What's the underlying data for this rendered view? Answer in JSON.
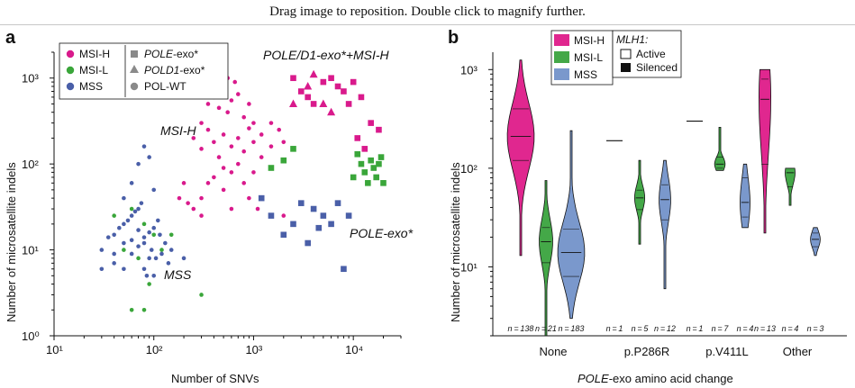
{
  "banner": "Drag image to reposition. Double click to magnify further.",
  "colors": {
    "msih": "#d91a8c",
    "msil": "#3aa63a",
    "mss": "#4a5fa8",
    "msih_fill": "#e0278f",
    "msil_fill": "#44a848",
    "mss_fill": "#7a98cc"
  },
  "panel_a": {
    "label": "a",
    "legend": {
      "groups": [
        "MSI-H",
        "MSI-L",
        "MSS"
      ],
      "shapes": [
        {
          "label_italic": "POLE",
          "label_rest": "-exo*",
          "icon": "square-icon"
        },
        {
          "label_italic": "POLD1",
          "label_rest": "-exo*",
          "icon": "triangle-icon"
        },
        {
          "label_italic": "",
          "label_rest": "POL-WT",
          "icon": "circle-icon"
        }
      ]
    },
    "annotations": {
      "poled1": "POLE/D1-exo*+MSI-H",
      "msih": "MSI-H",
      "mss": "MSS",
      "poleexo": "POLE-exo*"
    }
  },
  "panel_b": {
    "label": "b",
    "legend_groups": [
      "MSI-H",
      "MSI-L",
      "MSS"
    ],
    "legend_title": "MLH1:",
    "legend_status": [
      "Active",
      "Silenced"
    ]
  },
  "chart_data": [
    {
      "type": "scatter",
      "xlabel": "Number of SNVs",
      "ylabel": "Number of microsatellite indels",
      "xscale": "log",
      "yscale": "log",
      "xlim": [
        10,
        30000
      ],
      "ylim": [
        1,
        2000
      ],
      "xticks": [
        "10¹",
        "10²",
        "10³",
        "10⁴"
      ],
      "yticks": [
        "10⁰",
        "10¹",
        "10²",
        "10³"
      ],
      "series": [
        {
          "name": "MSI-H",
          "marker": "circle",
          "points": [
            [
              300,
              300
            ],
            [
              350,
              500
            ],
            [
              400,
              600
            ],
            [
              450,
              450
            ],
            [
              500,
              700
            ],
            [
              550,
              400
            ],
            [
              600,
              550
            ],
            [
              700,
              650
            ],
            [
              800,
              350
            ],
            [
              900,
              500
            ],
            [
              1000,
              300
            ],
            [
              250,
              200
            ],
            [
              300,
              150
            ],
            [
              350,
              250
            ],
            [
              400,
              180
            ],
            [
              450,
              120
            ],
            [
              500,
              220
            ],
            [
              600,
              160
            ],
            [
              700,
              200
            ],
            [
              800,
              140
            ],
            [
              900,
              260
            ],
            [
              1000,
              180
            ],
            [
              1200,
              220
            ],
            [
              1500,
              300
            ],
            [
              1800,
              250
            ],
            [
              2000,
              180
            ],
            [
              700,
              100
            ],
            [
              600,
              80
            ],
            [
              500,
              90
            ],
            [
              400,
              70
            ],
            [
              350,
              60
            ],
            [
              300,
              40
            ],
            [
              250,
              30
            ],
            [
              220,
              35
            ],
            [
              500,
              50
            ],
            [
              800,
              60
            ],
            [
              1000,
              80
            ],
            [
              1200,
              120
            ],
            [
              1500,
              160
            ],
            [
              200,
              60
            ],
            [
              180,
              40
            ],
            [
              600,
              30
            ],
            [
              900,
              40
            ],
            [
              1100,
              30
            ],
            [
              2000,
              25
            ],
            [
              300,
              25
            ],
            [
              450,
              800
            ],
            [
              650,
              900
            ],
            [
              550,
              1000
            ]
          ]
        },
        {
          "name": "MSI-H",
          "marker": "square",
          "points": [
            [
              2500,
              1000
            ],
            [
              3000,
              700
            ],
            [
              5000,
              900
            ],
            [
              6000,
              1000
            ],
            [
              8000,
              700
            ],
            [
              9000,
              500
            ],
            [
              10000,
              900
            ],
            [
              12000,
              600
            ],
            [
              15000,
              300
            ],
            [
              18000,
              250
            ],
            [
              11000,
              200
            ],
            [
              7000,
              800
            ],
            [
              4000,
              500
            ],
            [
              3500,
              600
            ],
            [
              13000,
              150
            ]
          ]
        },
        {
          "name": "MSI-H",
          "marker": "triangle",
          "points": [
            [
              4000,
              1100
            ],
            [
              3500,
              800
            ],
            [
              5000,
              500
            ],
            [
              6000,
              400
            ],
            [
              2500,
              500
            ]
          ]
        },
        {
          "name": "MSI-L",
          "marker": "circle",
          "points": [
            [
              60,
              30
            ],
            [
              80,
              20
            ],
            [
              100,
              15
            ],
            [
              70,
              8
            ],
            [
              90,
              4
            ],
            [
              60,
              2
            ],
            [
              80,
              2
            ],
            [
              120,
              10
            ],
            [
              50,
              10
            ],
            [
              150,
              15
            ],
            [
              40,
              25
            ],
            [
              300,
              3
            ]
          ]
        },
        {
          "name": "MSI-L",
          "marker": "square",
          "points": [
            [
              1500,
              90
            ],
            [
              2000,
              110
            ],
            [
              2500,
              150
            ],
            [
              11000,
              130
            ],
            [
              12000,
              100
            ],
            [
              13000,
              80
            ],
            [
              14000,
              60
            ],
            [
              15000,
              110
            ],
            [
              16000,
              90
            ],
            [
              18000,
              100
            ],
            [
              19000,
              120
            ],
            [
              10000,
              70
            ],
            [
              17000,
              70
            ],
            [
              20000,
              60
            ]
          ]
        },
        {
          "name": "MSS",
          "marker": "circle",
          "points": [
            [
              30,
              10
            ],
            [
              40,
              15
            ],
            [
              50,
              20
            ],
            [
              60,
              25
            ],
            [
              70,
              30
            ],
            [
              80,
              12
            ],
            [
              90,
              8
            ],
            [
              100,
              18
            ],
            [
              40,
              7
            ],
            [
              50,
              6
            ],
            [
              60,
              9
            ],
            [
              70,
              11
            ],
            [
              80,
              14
            ],
            [
              90,
              16
            ],
            [
              100,
              5
            ],
            [
              110,
              22
            ],
            [
              120,
              9
            ],
            [
              130,
              12
            ],
            [
              140,
              7
            ],
            [
              50,
              40
            ],
            [
              60,
              60
            ],
            [
              70,
              100
            ],
            [
              80,
              160
            ],
            [
              90,
              120
            ],
            [
              100,
              50
            ],
            [
              60,
              13
            ],
            [
              70,
              17
            ],
            [
              80,
              6
            ],
            [
              50,
              12
            ],
            [
              40,
              9
            ],
            [
              35,
              14
            ],
            [
              45,
              18
            ],
            [
              55,
              22
            ],
            [
              65,
              28
            ],
            [
              75,
              35
            ],
            [
              85,
              5
            ],
            [
              95,
              10
            ],
            [
              105,
              8
            ],
            [
              115,
              15
            ],
            [
              30,
              6
            ],
            [
              150,
              10
            ],
            [
              200,
              8
            ]
          ]
        },
        {
          "name": "MSS",
          "marker": "square",
          "points": [
            [
              1500,
              25
            ],
            [
              2000,
              15
            ],
            [
              2500,
              20
            ],
            [
              3000,
              35
            ],
            [
              4000,
              30
            ],
            [
              5000,
              25
            ],
            [
              6000,
              20
            ],
            [
              7000,
              35
            ],
            [
              8000,
              6
            ],
            [
              1200,
              40
            ],
            [
              3500,
              12
            ],
            [
              4500,
              18
            ],
            [
              9000,
              25
            ]
          ]
        }
      ]
    },
    {
      "type": "violin",
      "xlabel": "POLE-exo amino acid change",
      "ylabel": "Number of microsatellite indels",
      "yscale": "log",
      "ylim": [
        2,
        1500
      ],
      "yticks": [
        "10¹",
        "10²",
        "10³"
      ],
      "categories": [
        "None",
        "p.P286R",
        "p.V411L",
        "Other"
      ],
      "groups": [
        {
          "category": "None",
          "series": "MSI-H",
          "n": 138,
          "min": 13,
          "q1": 120,
          "median": 210,
          "q3": 400,
          "max": 1250
        },
        {
          "category": "None",
          "series": "MSI-L",
          "n": 21,
          "min": 2,
          "q1": 11,
          "median": 18,
          "q3": 25,
          "max": 75
        },
        {
          "category": "None",
          "series": "MSS",
          "n": 183,
          "min": 3,
          "q1": 8,
          "median": 14,
          "q3": 24,
          "max": 240
        },
        {
          "category": "p.P286R",
          "series": "MSI-H",
          "n": 1,
          "min": 190,
          "q1": 190,
          "median": 190,
          "q3": 190,
          "max": 190
        },
        {
          "category": "p.P286R",
          "series": "MSI-L",
          "n": 5,
          "min": 17,
          "q1": 38,
          "median": 50,
          "q3": 60,
          "max": 120
        },
        {
          "category": "p.P286R",
          "series": "MSS",
          "n": 12,
          "min": 6,
          "q1": 30,
          "median": 48,
          "q3": 68,
          "max": 120
        },
        {
          "category": "p.V411L",
          "series": "MSI-H",
          "n": 1,
          "min": 300,
          "q1": 300,
          "median": 300,
          "q3": 300,
          "max": 300
        },
        {
          "category": "p.V411L",
          "series": "MSI-L",
          "n": 7,
          "min": 95,
          "q1": 100,
          "median": 110,
          "q3": 130,
          "max": 260
        },
        {
          "category": "p.V411L",
          "series": "MSS",
          "n": 4,
          "min": 25,
          "q1": 32,
          "median": 45,
          "q3": 80,
          "max": 110
        },
        {
          "category": "Other",
          "series": "MSI-H",
          "n": 13,
          "min": 22,
          "q1": 110,
          "median": 500,
          "q3": 800,
          "max": 1000
        },
        {
          "category": "Other",
          "series": "MSI-L",
          "n": 4,
          "min": 42,
          "q1": 65,
          "median": 90,
          "q3": 100,
          "max": 100
        },
        {
          "category": "Other",
          "series": "MSS",
          "n": 3,
          "min": 13,
          "q1": 16,
          "median": 19,
          "q3": 22,
          "max": 25
        }
      ]
    }
  ]
}
